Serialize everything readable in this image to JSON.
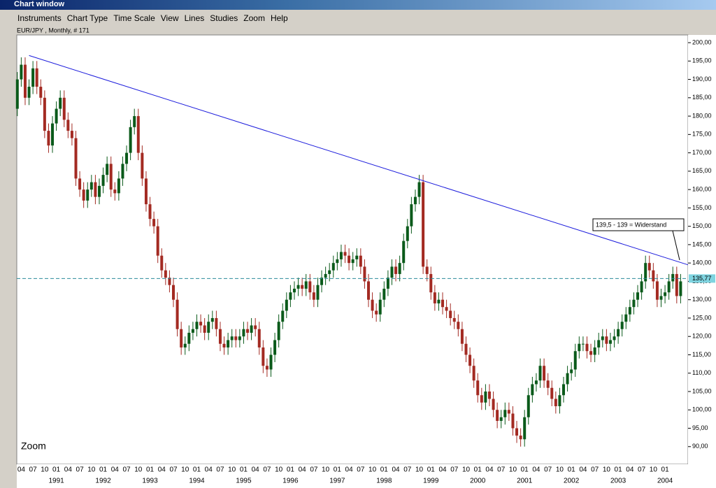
{
  "window": {
    "title": "Chart window"
  },
  "menu": [
    "Instruments",
    "Chart Type",
    "Time Scale",
    "View",
    "Lines",
    "Studies",
    "Zoom",
    "Help"
  ],
  "chart_data": {
    "type": "candlestick",
    "title": "EUR/JPY , Monthly, # 171",
    "zoom_label": "Zoom",
    "up_color": "#0a5a1a",
    "down_color": "#a32a22",
    "open": [
      182,
      190,
      194,
      185,
      188,
      193,
      188,
      185,
      176,
      172,
      178,
      182,
      185,
      179,
      176,
      174,
      163,
      160,
      157,
      160,
      162,
      158,
      161,
      164,
      167,
      160,
      159,
      163,
      167,
      170,
      177,
      180,
      170,
      163,
      156,
      152,
      150,
      142,
      138,
      136,
      134,
      130,
      122,
      117,
      118,
      121,
      122,
      124,
      123,
      121,
      124,
      125,
      122,
      118,
      117,
      119,
      120,
      119,
      120,
      122,
      121,
      123,
      122,
      117,
      112,
      111,
      115,
      119,
      124,
      127,
      130,
      132,
      133,
      134,
      133,
      135,
      132,
      130,
      134,
      136,
      137,
      138,
      140,
      141,
      143,
      142,
      140,
      141,
      142,
      139,
      135,
      130,
      127,
      126,
      130,
      133,
      136,
      139,
      137,
      140,
      146,
      150,
      156,
      158,
      162,
      139,
      137,
      132,
      129,
      130,
      128,
      127,
      125,
      124,
      122,
      118,
      115,
      112,
      108,
      104,
      102,
      105,
      103,
      100,
      97,
      98,
      100,
      99,
      95,
      93,
      92,
      98,
      104,
      107,
      108,
      112,
      108,
      106,
      103,
      101,
      104,
      107,
      110,
      111,
      116,
      118,
      118,
      116,
      115,
      117,
      119,
      120,
      118,
      119,
      120,
      122,
      124,
      126,
      128,
      130,
      132,
      135,
      140,
      138,
      135,
      130,
      131,
      132,
      135,
      137,
      131
    ],
    "high": [
      192,
      196,
      196,
      190,
      195,
      195,
      190,
      187,
      178,
      180,
      184,
      187,
      187,
      181,
      178,
      176,
      165,
      162,
      162,
      164,
      164,
      163,
      166,
      169,
      169,
      162,
      165,
      169,
      172,
      179,
      182,
      182,
      172,
      165,
      158,
      154,
      152,
      144,
      140,
      138,
      136,
      132,
      124,
      120,
      123,
      124,
      126,
      126,
      125,
      126,
      127,
      127,
      124,
      120,
      121,
      122,
      122,
      122,
      124,
      124,
      125,
      125,
      124,
      119,
      114,
      117,
      121,
      126,
      129,
      132,
      134,
      135,
      136,
      136,
      137,
      137,
      134,
      136,
      138,
      139,
      140,
      142,
      143,
      145,
      145,
      144,
      143,
      144,
      144,
      141,
      137,
      132,
      129,
      132,
      135,
      138,
      141,
      141,
      142,
      148,
      152,
      158,
      160,
      164,
      164,
      141,
      139,
      134,
      132,
      132,
      130,
      129,
      127,
      126,
      124,
      120,
      117,
      114,
      110,
      106,
      107,
      107,
      105,
      102,
      100,
      102,
      102,
      101,
      97,
      95,
      100,
      106,
      109,
      110,
      114,
      114,
      110,
      108,
      105,
      106,
      109,
      112,
      113,
      118,
      120,
      120,
      120,
      118,
      119,
      121,
      122,
      122,
      121,
      122,
      124,
      126,
      128,
      130,
      132,
      134,
      137,
      142,
      142,
      140,
      137,
      133,
      134,
      137,
      139,
      139,
      137
    ],
    "low": [
      180,
      188,
      183,
      183,
      186,
      186,
      183,
      174,
      170,
      170,
      176,
      180,
      177,
      174,
      172,
      161,
      158,
      155,
      155,
      158,
      156,
      156,
      159,
      162,
      158,
      157,
      157,
      161,
      165,
      168,
      175,
      168,
      161,
      154,
      150,
      148,
      140,
      136,
      134,
      132,
      128,
      120,
      115,
      115,
      116,
      119,
      120,
      121,
      119,
      119,
      122,
      120,
      116,
      115,
      115,
      117,
      117,
      117,
      118,
      119,
      119,
      120,
      115,
      110,
      109,
      109,
      113,
      117,
      122,
      125,
      128,
      130,
      131,
      131,
      131,
      130,
      128,
      128,
      132,
      134,
      135,
      136,
      138,
      139,
      140,
      138,
      138,
      139,
      137,
      133,
      128,
      125,
      124,
      124,
      128,
      131,
      134,
      135,
      135,
      138,
      144,
      148,
      154,
      156,
      137,
      135,
      130,
      127,
      127,
      126,
      125,
      123,
      122,
      120,
      116,
      113,
      110,
      106,
      102,
      100,
      100,
      101,
      98,
      95,
      95,
      96,
      97,
      93,
      91,
      90,
      90,
      96,
      102,
      105,
      106,
      106,
      104,
      101,
      99,
      99,
      102,
      105,
      108,
      109,
      114,
      116,
      114,
      113,
      113,
      115,
      117,
      116,
      116,
      117,
      118,
      120,
      122,
      124,
      126,
      128,
      130,
      133,
      136,
      133,
      128,
      128,
      129,
      130,
      133,
      129,
      129
    ],
    "close": [
      190,
      194,
      185,
      188,
      193,
      188,
      185,
      176,
      172,
      178,
      182,
      185,
      179,
      176,
      174,
      163,
      160,
      157,
      160,
      162,
      158,
      161,
      164,
      167,
      160,
      159,
      163,
      167,
      170,
      177,
      180,
      170,
      163,
      156,
      152,
      150,
      142,
      138,
      136,
      134,
      130,
      122,
      117,
      118,
      121,
      122,
      124,
      123,
      121,
      124,
      125,
      122,
      118,
      117,
      119,
      120,
      119,
      120,
      122,
      121,
      123,
      122,
      117,
      112,
      111,
      115,
      119,
      124,
      127,
      130,
      132,
      133,
      134,
      133,
      135,
      132,
      130,
      134,
      136,
      137,
      138,
      140,
      141,
      143,
      142,
      140,
      141,
      142,
      139,
      135,
      130,
      127,
      126,
      130,
      133,
      136,
      139,
      137,
      140,
      146,
      150,
      156,
      158,
      162,
      139,
      137,
      132,
      129,
      130,
      128,
      127,
      125,
      124,
      122,
      118,
      115,
      112,
      108,
      104,
      102,
      105,
      103,
      100,
      97,
      98,
      100,
      99,
      95,
      93,
      92,
      98,
      104,
      107,
      108,
      112,
      108,
      106,
      103,
      101,
      104,
      107,
      110,
      111,
      116,
      118,
      118,
      116,
      115,
      117,
      119,
      120,
      118,
      119,
      120,
      122,
      124,
      126,
      128,
      130,
      132,
      135,
      140,
      138,
      135,
      130,
      131,
      132,
      135,
      137,
      131,
      135
    ],
    "month_labels": [
      "04",
      "07",
      "10",
      "01",
      "04",
      "07",
      "10",
      "01",
      "04",
      "07",
      "10",
      "01",
      "04",
      "07",
      "10",
      "01",
      "04",
      "07",
      "10",
      "01",
      "04",
      "07",
      "10",
      "01",
      "04",
      "07",
      "10",
      "01",
      "04",
      "07",
      "10",
      "01",
      "04",
      "07",
      "10",
      "01",
      "04",
      "07",
      "10",
      "01",
      "04",
      "07",
      "10",
      "01",
      "04",
      "07",
      "10",
      "01",
      "04",
      "07",
      "10",
      "01",
      "04",
      "07",
      "10",
      "01"
    ],
    "year_labels": [
      "1991",
      "1992",
      "1993",
      "1994",
      "1995",
      "1996",
      "1997",
      "1998",
      "1999",
      "2000",
      "2001",
      "2002",
      "2003",
      "2004"
    ],
    "ylim": [
      85.2,
      202.1
    ],
    "yticks": [
      {
        "value": 90,
        "label": "90,00"
      },
      {
        "value": 95,
        "label": "95,00"
      },
      {
        "value": 100,
        "label": "100,00"
      },
      {
        "value": 105,
        "label": "105,00"
      },
      {
        "value": 110,
        "label": "110,00"
      },
      {
        "value": 115,
        "label": "115,00"
      },
      {
        "value": 120,
        "label": "120,00"
      },
      {
        "value": 125,
        "label": "125,00"
      },
      {
        "value": 130,
        "label": "130,00"
      },
      {
        "value": 135,
        "label": "135,00"
      },
      {
        "value": 140,
        "label": "140,00"
      },
      {
        "value": 145,
        "label": "145,00"
      },
      {
        "value": 150,
        "label": "150,00"
      },
      {
        "value": 155,
        "label": "155,00"
      },
      {
        "value": 160,
        "label": "160,00"
      },
      {
        "value": 165,
        "label": "165,00"
      },
      {
        "value": 170,
        "label": "170,00"
      },
      {
        "value": 175,
        "label": "175,00"
      },
      {
        "value": 180,
        "label": "180,00"
      },
      {
        "value": 185,
        "label": "185,00"
      },
      {
        "value": 190,
        "label": "190,00"
      },
      {
        "value": 195,
        "label": "195,00"
      },
      {
        "value": 200,
        "label": "200,00"
      }
    ],
    "last_price": {
      "value": 135.77,
      "label": "135,77"
    },
    "trend_line": {
      "values": [
        196.5,
        139.5
      ],
      "color": "#1a1adc",
      "annotation": "139,5 - 139 = Widerstand"
    }
  }
}
